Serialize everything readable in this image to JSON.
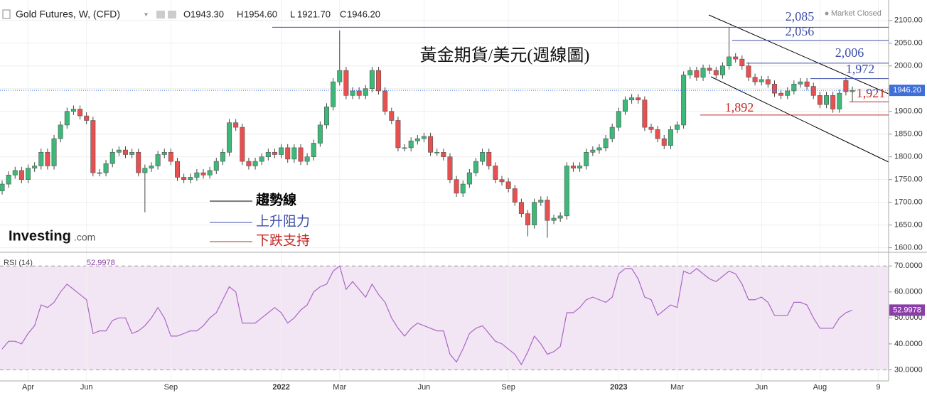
{
  "header": {
    "symbol": "Gold Futures, W, (CFD)",
    "status": "Market Closed",
    "ohlc": [
      [
        "O",
        "1943.30"
      ],
      [
        "H",
        "1954.60"
      ],
      [
        "L",
        "1921.70"
      ],
      [
        "C",
        "1946.20"
      ]
    ],
    "logo": "Investing",
    "logo_suffix": ".com"
  },
  "chart_data": [
    {
      "type": "candlestick",
      "annotation": "黃金期貨/美元(週線圖)",
      "categories": [
        null,
        null,
        null,
        null,
        "Apr",
        null,
        null,
        null,
        null,
        null,
        null,
        null,
        null,
        "Jun",
        null,
        null,
        null,
        null,
        null,
        null,
        null,
        null,
        null,
        null,
        null,
        null,
        "Sep",
        null,
        null,
        null,
        null,
        null,
        null,
        null,
        null,
        null,
        null,
        null,
        null,
        null,
        null,
        null,
        null,
        "2022",
        null,
        null,
        null,
        null,
        null,
        null,
        null,
        null,
        "Mar",
        null,
        null,
        null,
        null,
        null,
        null,
        null,
        null,
        null,
        null,
        null,
        null,
        "Jun",
        null,
        null,
        null,
        null,
        null,
        null,
        null,
        null,
        null,
        null,
        null,
        null,
        "Sep",
        null,
        null,
        null,
        null,
        null,
        null,
        null,
        null,
        null,
        null,
        null,
        null,
        null,
        null,
        null,
        null,
        "2023",
        null,
        null,
        null,
        null,
        null,
        null,
        null,
        null,
        "Mar",
        null,
        null,
        null,
        null,
        null,
        null,
        null,
        null,
        null,
        null,
        null,
        null,
        "Jun",
        null,
        null,
        null,
        null,
        null,
        null,
        null,
        null,
        "Aug",
        null,
        null,
        null,
        null,
        null,
        null,
        null,
        null,
        "9"
      ],
      "open": [
        1725,
        1740,
        1760,
        1770,
        1750,
        1775,
        1780,
        1810,
        1780,
        1840,
        1870,
        1900,
        1905,
        1890,
        1880,
        1765,
        1765,
        1785,
        1810,
        1815,
        1805,
        1810,
        1765,
        1775,
        1780,
        1805,
        1810,
        1790,
        1755,
        1750,
        1755,
        1765,
        1760,
        1770,
        1790,
        1810,
        1875,
        1865,
        1790,
        1780,
        1790,
        1800,
        1810,
        1805,
        1820,
        1795,
        1820,
        1790,
        1800,
        1830,
        1870,
        1910,
        1965,
        1990,
        1935,
        1945,
        1935,
        1950,
        1990,
        1945,
        1900,
        1880,
        1820,
        1820,
        1835,
        1840,
        1845,
        1810,
        1810,
        1800,
        1750,
        1720,
        1740,
        1765,
        1790,
        1810,
        1780,
        1750,
        1745,
        1730,
        1700,
        1675,
        1650,
        1700,
        1705,
        1660,
        1665,
        1670,
        1780,
        1775,
        1780,
        1810,
        1815,
        1820,
        1840,
        1865,
        1900,
        1925,
        1930,
        1925,
        1865,
        1860,
        1840,
        1825,
        1860,
        1870,
        1980,
        1990,
        1975,
        1995,
        1990,
        1980,
        2000,
        2020,
        2015,
        2000,
        1975,
        1965,
        1970,
        1960,
        1940,
        1935,
        1945,
        1960,
        1965,
        1955,
        1935,
        1915,
        1935,
        1905,
        1968,
        1943.3,
        null,
        null,
        null,
        null
      ],
      "high": [
        1748,
        1768,
        1778,
        1778,
        1783,
        1788,
        1818,
        1818,
        1848,
        1878,
        1908,
        1913,
        1913,
        1898,
        1888,
        1773,
        1793,
        1818,
        1823,
        1823,
        1818,
        1818,
        1783,
        1788,
        1813,
        1818,
        1818,
        1798,
        1763,
        1763,
        1773,
        1773,
        1778,
        1798,
        1818,
        1883,
        1883,
        1873,
        1798,
        1798,
        1808,
        1818,
        1818,
        1828,
        1828,
        1828,
        1828,
        1808,
        1838,
        1878,
        1918,
        1973,
        2078,
        1998,
        1953,
        1953,
        1958,
        1998,
        1998,
        1953,
        1908,
        1888,
        1828,
        1843,
        1848,
        1853,
        1853,
        1818,
        1818,
        1808,
        1758,
        1748,
        1773,
        1798,
        1818,
        1818,
        1788,
        1758,
        1753,
        1738,
        1708,
        1683,
        1708,
        1713,
        1713,
        1673,
        1678,
        1788,
        1788,
        1788,
        1818,
        1823,
        1828,
        1848,
        1873,
        1908,
        1933,
        1938,
        1938,
        1933,
        1873,
        1868,
        1848,
        1868,
        1878,
        1988,
        1998,
        1998,
        2003,
        2003,
        1998,
        2008,
        2085,
        2028,
        2023,
        2008,
        1983,
        1978,
        1978,
        1968,
        1948,
        1953,
        1968,
        1973,
        1973,
        1963,
        1943,
        1943,
        1943,
        1948,
        1975,
        1954.6,
        null,
        null,
        null,
        null
      ],
      "low": [
        1717,
        1732,
        1752,
        1742,
        1742,
        1767,
        1772,
        1772,
        1772,
        1832,
        1862,
        1892,
        1882,
        1872,
        1757,
        1757,
        1757,
        1777,
        1802,
        1797,
        1797,
        1757,
        1678,
        1767,
        1772,
        1797,
        1782,
        1747,
        1742,
        1742,
        1747,
        1752,
        1752,
        1762,
        1782,
        1802,
        1857,
        1782,
        1772,
        1772,
        1782,
        1792,
        1797,
        1797,
        1787,
        1787,
        1782,
        1782,
        1792,
        1822,
        1862,
        1902,
        1957,
        1927,
        1927,
        1927,
        1927,
        1942,
        1937,
        1892,
        1872,
        1812,
        1812,
        1812,
        1827,
        1832,
        1802,
        1802,
        1792,
        1742,
        1712,
        1712,
        1732,
        1757,
        1782,
        1772,
        1742,
        1737,
        1722,
        1692,
        1667,
        1625,
        1642,
        1692,
        1622,
        1652,
        1657,
        1662,
        1767,
        1767,
        1772,
        1802,
        1807,
        1812,
        1832,
        1857,
        1892,
        1917,
        1917,
        1857,
        1852,
        1832,
        1817,
        1817,
        1852,
        1862,
        1972,
        1967,
        1967,
        1982,
        1972,
        1972,
        1992,
        2007,
        1992,
        1967,
        1957,
        1957,
        1952,
        1932,
        1927,
        1927,
        1937,
        1952,
        1947,
        1927,
        1907,
        1907,
        1897,
        1897,
        1935,
        1921.7,
        null,
        null,
        null,
        null
      ],
      "close": [
        1740,
        1760,
        1770,
        1750,
        1775,
        1780,
        1810,
        1780,
        1840,
        1870,
        1900,
        1905,
        1890,
        1880,
        1765,
        1765,
        1785,
        1810,
        1815,
        1805,
        1810,
        1765,
        1775,
        1780,
        1805,
        1810,
        1790,
        1755,
        1750,
        1755,
        1765,
        1760,
        1770,
        1790,
        1810,
        1875,
        1865,
        1790,
        1780,
        1790,
        1800,
        1810,
        1805,
        1820,
        1795,
        1820,
        1790,
        1800,
        1830,
        1870,
        1910,
        1965,
        1990,
        1935,
        1945,
        1935,
        1950,
        1990,
        1945,
        1900,
        1880,
        1820,
        1820,
        1835,
        1840,
        1845,
        1810,
        1810,
        1800,
        1750,
        1720,
        1740,
        1765,
        1790,
        1810,
        1780,
        1750,
        1745,
        1730,
        1700,
        1675,
        1650,
        1700,
        1705,
        1660,
        1665,
        1670,
        1780,
        1775,
        1780,
        1810,
        1815,
        1820,
        1840,
        1865,
        1900,
        1925,
        1930,
        1925,
        1865,
        1860,
        1840,
        1825,
        1860,
        1870,
        1980,
        1990,
        1975,
        1995,
        1990,
        1980,
        2000,
        2020,
        2015,
        2000,
        1975,
        1965,
        1970,
        1960,
        1940,
        1935,
        1945,
        1960,
        1965,
        1955,
        1935,
        1915,
        1935,
        1905,
        1940,
        1943.3,
        1946.2,
        null,
        null,
        null,
        null
      ],
      "up_color": "#3cb878",
      "down_color": "#e8504f",
      "ylim": [
        1590,
        2145
      ],
      "yticks": [
        {
          "value": 1600,
          "label": "1600.00"
        },
        {
          "value": 1650,
          "label": "1650.00"
        },
        {
          "value": 1700,
          "label": "1700.00"
        },
        {
          "value": 1750,
          "label": "1750.00"
        },
        {
          "value": 1800,
          "label": "1800.00"
        },
        {
          "value": 1850,
          "label": "1850.00"
        },
        {
          "value": 1900,
          "label": "1900.00"
        },
        {
          "value": 1950,
          "label": "1950.00"
        },
        {
          "value": 2000,
          "label": "2000.00"
        },
        {
          "value": 2050,
          "label": "2050.00"
        },
        {
          "value": 2100,
          "label": "2100.00"
        }
      ],
      "last_price": {
        "value": 1946.2,
        "label": "1946.20"
      },
      "levels": [
        {
          "value": 2085,
          "label": "2,085",
          "color": "#3f4fa8"
        },
        {
          "value": 2056,
          "label": "2,056",
          "color": "#3f4fa8"
        },
        {
          "value": 2006,
          "label": "2,006",
          "color": "#3f4fa8"
        },
        {
          "value": 1972,
          "label": "1,972",
          "color": "#3f4fa8"
        },
        {
          "value": 1921,
          "label": "1,921",
          "color": "#c62828"
        },
        {
          "value": 1892,
          "label": "1,892",
          "color": "#c62828"
        }
      ],
      "legend": [
        {
          "name": "趨勢線",
          "color": "#000000"
        },
        {
          "name": "上升阻力",
          "color": "#3f4fa8"
        },
        {
          "name": "下跌支持",
          "color": "#c62828"
        }
      ],
      "grid": true
    },
    {
      "type": "line",
      "name": "RSI (14)",
      "color": "#a966c6",
      "values": [
        38,
        41,
        41,
        40,
        44,
        47,
        55,
        54,
        56,
        60,
        63,
        61,
        59,
        57,
        44,
        45,
        45,
        49,
        50,
        50,
        44,
        45,
        47,
        50,
        54,
        50,
        43,
        43,
        44,
        45,
        45,
        47,
        50,
        52,
        57,
        62,
        60,
        48,
        48,
        48,
        50,
        52,
        54,
        52,
        48,
        50,
        53,
        55,
        60,
        62,
        63,
        68,
        70,
        61,
        64,
        61,
        58,
        63,
        59,
        56,
        50,
        46,
        43,
        46,
        48,
        47,
        46,
        45,
        45,
        36,
        33,
        38,
        44,
        46,
        47,
        44,
        41,
        40,
        38,
        36,
        32,
        37,
        43,
        40,
        36,
        37,
        39,
        52,
        52,
        54,
        57,
        58,
        57,
        56,
        58,
        67,
        69,
        69,
        65,
        58,
        57,
        51,
        53,
        55,
        54,
        68,
        67,
        69,
        67,
        65,
        64,
        66,
        68,
        67,
        63,
        57,
        57,
        58,
        56,
        51,
        51,
        51,
        56,
        56,
        55,
        50,
        46,
        46,
        46,
        50,
        52,
        52.9978,
        null,
        null,
        null,
        null
      ],
      "ylim": [
        26,
        75
      ],
      "yticks": [
        {
          "value": 30,
          "label": "30.0000"
        },
        {
          "value": 40,
          "label": "40.0000"
        },
        {
          "value": 50,
          "label": "50.0000"
        },
        {
          "value": 60,
          "label": "60.0000"
        },
        {
          "value": 70,
          "label": "70.0000"
        }
      ],
      "band": [
        30,
        70
      ]
    }
  ]
}
